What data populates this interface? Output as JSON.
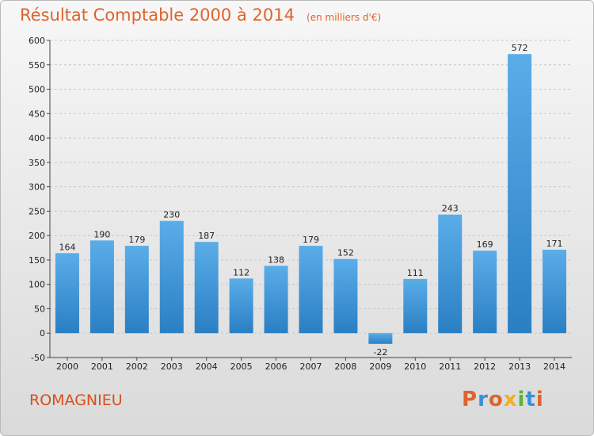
{
  "header": {
    "title": "Résultat Comptable 2000 à 2014",
    "subtitle": "(en milliers d'€)"
  },
  "footer": {
    "commune": "ROMAGNIEU",
    "logo_text": "Proxiti"
  },
  "colors": {
    "title": "#e0632c",
    "bar_top": "#5aade8",
    "bar_bottom": "#2a7fc4",
    "gridline": "#c8c8c8",
    "logo_letters": [
      "#e0632c",
      "#3a8fd6",
      "#e0632c",
      "#f2b01e",
      "#5bb531",
      "#3a8fd6",
      "#e0632c"
    ]
  },
  "chart_data": {
    "type": "bar",
    "title": "Résultat Comptable 2000 à 2014",
    "subtitle": "(en milliers d'€)",
    "xlabel": "",
    "ylabel": "",
    "categories": [
      "2000",
      "2001",
      "2002",
      "2003",
      "2004",
      "2005",
      "2006",
      "2007",
      "2008",
      "2009",
      "2010",
      "2011",
      "2012",
      "2013",
      "2014"
    ],
    "values": [
      164,
      190,
      179,
      230,
      187,
      112,
      138,
      179,
      152,
      -22,
      111,
      243,
      169,
      572,
      171
    ],
    "ylim": [
      -50,
      600
    ],
    "yticks": [
      -50,
      0,
      50,
      100,
      150,
      200,
      250,
      300,
      350,
      400,
      450,
      500,
      550,
      600
    ],
    "grid": true,
    "legend": "none"
  }
}
